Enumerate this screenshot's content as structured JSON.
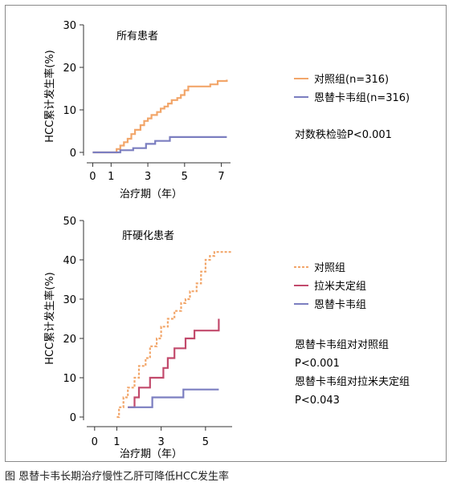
{
  "caption": "图  恩替卡韦长期治疗慢性乙肝可降低HCC发生率",
  "chart_data": [
    {
      "type": "line",
      "title": "所有患者",
      "xlabel": "治疗期（年）",
      "ylabel": "HCC累计发生率(%)",
      "xlim": [
        -0.5,
        7.5
      ],
      "ylim": [
        0,
        30
      ],
      "xticks": [
        0,
        1,
        3,
        5,
        7
      ],
      "yticks": [
        0,
        10,
        20,
        30
      ],
      "legend_position": "right",
      "test_note": "对数秩检验P<0.001",
      "series": [
        {
          "name": "对照组(n=316)",
          "color": "#f2a66a",
          "x": [
            0,
            1.0,
            1.3,
            1.5,
            1.7,
            1.9,
            2.1,
            2.3,
            2.6,
            2.8,
            3.0,
            3.2,
            3.5,
            3.7,
            3.9,
            4.1,
            4.3,
            4.6,
            4.8,
            5.0,
            5.2,
            5.6,
            6.0,
            6.4,
            6.8,
            7.3
          ],
          "y": [
            0,
            0,
            0.8,
            1.6,
            2.4,
            3.2,
            4.3,
            5.3,
            6.4,
            7.4,
            8.0,
            8.8,
            9.5,
            10.3,
            10.8,
            11.5,
            12.3,
            12.8,
            13.5,
            14.6,
            15.5,
            15.5,
            15.5,
            16.0,
            16.8,
            17.1
          ]
        },
        {
          "name": "恩替卡韦组(n=316)",
          "color": "#7b7ec0",
          "x": [
            0,
            1.0,
            1.5,
            2.2,
            2.9,
            3.4,
            4.2,
            4.5,
            5.2,
            6.4,
            7.3
          ],
          "y": [
            0,
            0,
            0.5,
            1.0,
            2.0,
            2.7,
            3.6,
            3.6,
            3.6,
            3.6,
            3.6
          ]
        }
      ]
    },
    {
      "type": "line",
      "title": "肝硬化患者",
      "xlabel": "治疗期（年）",
      "ylabel": "HCC累计发生率(%)",
      "xlim": [
        -0.5,
        6.2
      ],
      "ylim": [
        0,
        50
      ],
      "xticks": [
        0,
        1,
        3,
        5
      ],
      "yticks": [
        0,
        10,
        20,
        30,
        40,
        50
      ],
      "legend_position": "right",
      "test_notes": [
        "恩替卡韦组对对照组",
        "P<0.001",
        "恩替卡韦组对拉米夫定组",
        "P<0.043"
      ],
      "series": [
        {
          "name": "对照组",
          "color": "#f2a66a",
          "x": [
            1.0,
            1.1,
            1.3,
            1.5,
            1.8,
            2.0,
            2.3,
            2.5,
            2.8,
            3.0,
            3.3,
            3.6,
            3.9,
            4.1,
            4.3,
            4.6,
            4.8,
            5.0,
            5.2,
            5.4,
            5.7,
            6.2
          ],
          "y": [
            0,
            2.5,
            5,
            7.5,
            10,
            13,
            15,
            18,
            20,
            23,
            25,
            27,
            29,
            30,
            32,
            34,
            37,
            40,
            41,
            42,
            42,
            42
          ]
        },
        {
          "name": "拉米夫定组",
          "color": "#c24a6c",
          "x": [
            1.5,
            1.8,
            2.0,
            2.5,
            2.8,
            3.1,
            3.3,
            3.6,
            4.1,
            4.5,
            5.0,
            5.4,
            5.6
          ],
          "y": [
            2.5,
            5,
            7.5,
            10,
            10,
            12.5,
            15,
            17.5,
            20,
            22,
            22,
            22,
            25
          ]
        },
        {
          "name": "恩替卡韦组",
          "color": "#7b7ec0",
          "x": [
            1.5,
            1.8,
            2.2,
            2.6,
            3.0,
            3.5,
            4.0,
            4.5,
            5.0,
            5.6
          ],
          "y": [
            2.5,
            2.5,
            2.5,
            5,
            5,
            5,
            7,
            7,
            7,
            7
          ]
        }
      ]
    }
  ]
}
